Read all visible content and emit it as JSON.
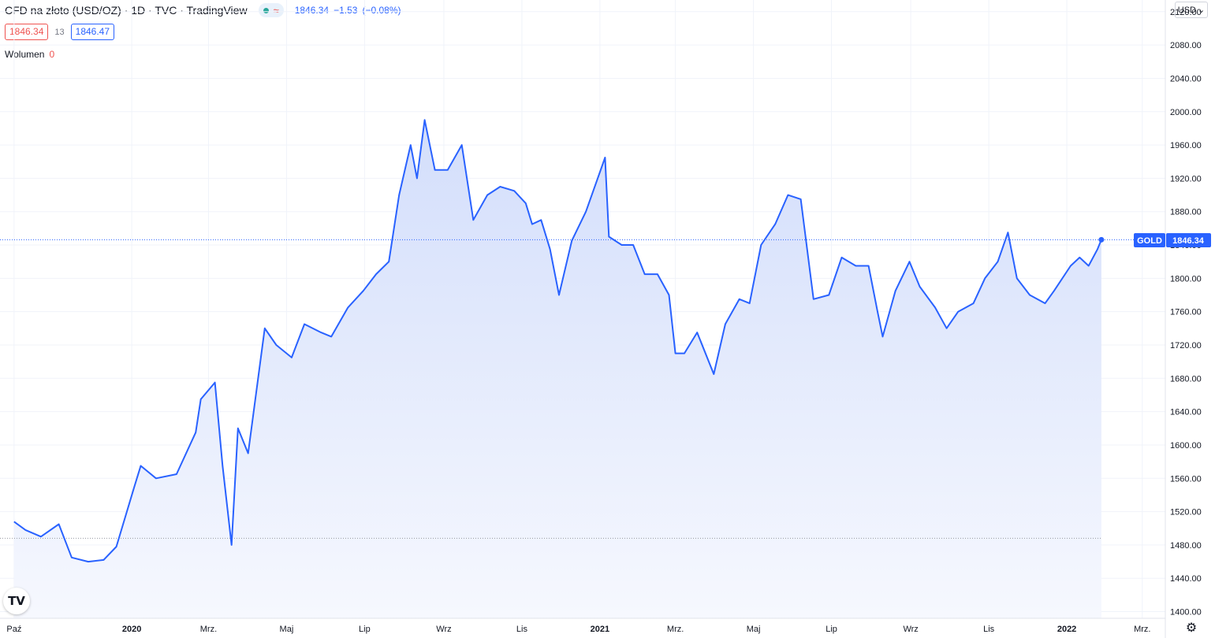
{
  "header": {
    "title": "CFD na złoto (USD/OZ) · 1D · TVC · TradingView",
    "market_status_icon": "market-open-dot",
    "delay_symbol": "≈",
    "price": "1846.34",
    "change": "−1.53",
    "change_pct": "(−0.08%)"
  },
  "quote": {
    "bid": "1846.34",
    "spread": "13",
    "ask": "1846.47"
  },
  "volume": {
    "label": "Wolumen",
    "value": "0"
  },
  "currency": {
    "label": "USD",
    "icon": "chevron-down-icon"
  },
  "price_label": {
    "symbol": "GOLD",
    "value": "1846.34"
  },
  "logo_text": "TV",
  "settings_icon": "gear-icon",
  "colors": {
    "line": "#2962ff",
    "area_top": "#d3defb",
    "area_bottom": "#f4f7fe",
    "grid": "#f0f3fa",
    "label_bg": "#2962ff"
  },
  "chart_data": {
    "type": "area",
    "y_ticks": [
      "1400.00",
      "1440.00",
      "1480.00",
      "1520.00",
      "1560.00",
      "1600.00",
      "1640.00",
      "1680.00",
      "1720.00",
      "1760.00",
      "1800.00",
      "1840.00",
      "1880.00",
      "1920.00",
      "1960.00",
      "2000.00",
      "2040.00",
      "2080.00",
      "2120.00"
    ],
    "x_ticks": [
      "Paź",
      "2020",
      "Mrz.",
      "Maj",
      "Lip",
      "Wrz",
      "Lis",
      "2021",
      "Mrz.",
      "Maj",
      "Lip",
      "Wrz",
      "Lis",
      "2022",
      "Mrz."
    ],
    "ylim": [
      1392,
      2134
    ],
    "grid": true,
    "last_value": 1846.34,
    "reference_line_value": 1488,
    "x": [
      "2019-10-01",
      "2019-10-10",
      "2019-10-22",
      "2019-11-05",
      "2019-11-15",
      "2019-11-28",
      "2019-12-10",
      "2019-12-20",
      "2020-01-03",
      "2020-01-08",
      "2020-01-20",
      "2020-02-05",
      "2020-02-20",
      "2020-02-24",
      "2020-03-06",
      "2020-03-12",
      "2020-03-19",
      "2020-03-24",
      "2020-04-01",
      "2020-04-14",
      "2020-04-23",
      "2020-05-05",
      "2020-05-15",
      "2020-05-28",
      "2020-06-05",
      "2020-06-18",
      "2020-06-30",
      "2020-07-10",
      "2020-07-20",
      "2020-07-28",
      "2020-08-06",
      "2020-08-11",
      "2020-08-17",
      "2020-08-25",
      "2020-09-04",
      "2020-09-15",
      "2020-09-24",
      "2020-10-05",
      "2020-10-15",
      "2020-10-26",
      "2020-11-04",
      "2020-11-09",
      "2020-11-16",
      "2020-11-23",
      "2020-11-30",
      "2020-12-10",
      "2020-12-21",
      "2021-01-05",
      "2021-01-08",
      "2021-01-18",
      "2021-01-27",
      "2021-02-05",
      "2021-02-15",
      "2021-02-24",
      "2021-03-01",
      "2021-03-08",
      "2021-03-18",
      "2021-03-31",
      "2021-04-09",
      "2021-04-20",
      "2021-04-28",
      "2021-05-07",
      "2021-05-18",
      "2021-05-28",
      "2021-06-07",
      "2021-06-17",
      "2021-06-29",
      "2021-07-09",
      "2021-07-20",
      "2021-07-30",
      "2021-08-06",
      "2021-08-10",
      "2021-08-20",
      "2021-08-31",
      "2021-09-08",
      "2021-09-20",
      "2021-09-29",
      "2021-10-08",
      "2021-10-20",
      "2021-10-29",
      "2021-11-08",
      "2021-11-16",
      "2021-11-23",
      "2021-12-03",
      "2021-12-15",
      "2021-12-22",
      "2022-01-04",
      "2022-01-11",
      "2022-01-18",
      "2022-01-25",
      "2022-01-28"
    ],
    "values": [
      1508,
      1498,
      1490,
      1505,
      1465,
      1460,
      1462,
      1478,
      1550,
      1575,
      1560,
      1565,
      1615,
      1655,
      1675,
      1575,
      1480,
      1620,
      1590,
      1740,
      1720,
      1705,
      1745,
      1735,
      1730,
      1765,
      1785,
      1805,
      1820,
      1900,
      1960,
      1920,
      1990,
      1930,
      1930,
      1960,
      1870,
      1900,
      1910,
      1905,
      1890,
      1865,
      1870,
      1835,
      1780,
      1845,
      1880,
      1945,
      1850,
      1840,
      1840,
      1805,
      1805,
      1780,
      1710,
      1710,
      1735,
      1685,
      1745,
      1775,
      1770,
      1840,
      1865,
      1900,
      1895,
      1775,
      1780,
      1825,
      1815,
      1815,
      1760,
      1730,
      1785,
      1820,
      1790,
      1765,
      1740,
      1760,
      1770,
      1800,
      1820,
      1855,
      1800,
      1780,
      1770,
      1785,
      1815,
      1825,
      1815,
      1835,
      1846.34
    ]
  }
}
